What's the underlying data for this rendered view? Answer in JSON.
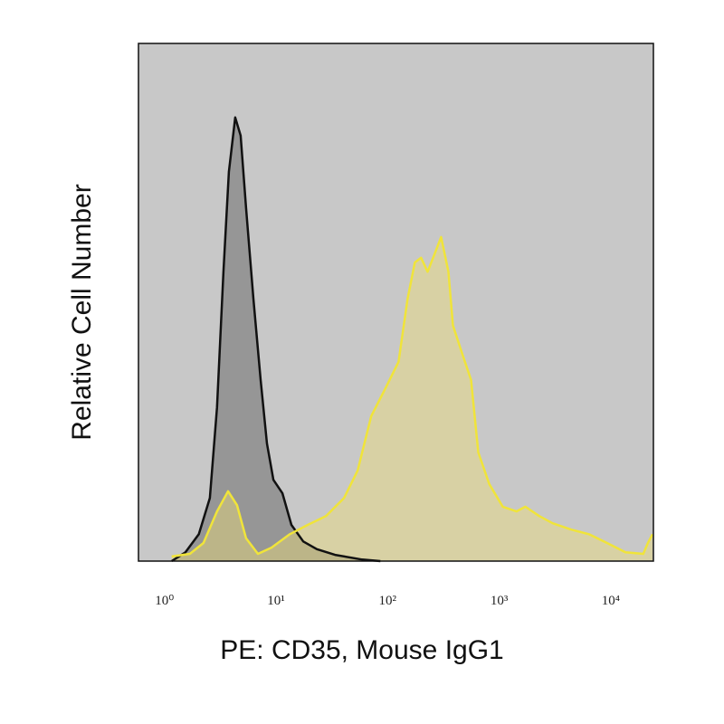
{
  "chart_data": {
    "type": "area",
    "x_label": "PE: CD35, Mouse IgG1",
    "y_label": "Relative Cell Number",
    "xscale": "log",
    "xlim": [
      0.63,
      26000
    ],
    "ylim": [
      0,
      100
    ],
    "xticks": [
      {
        "value": 1,
        "label": "10⁰"
      },
      {
        "value": 10,
        "label": "10¹"
      },
      {
        "value": 100,
        "label": "10²"
      },
      {
        "value": 1000,
        "label": "10³"
      },
      {
        "value": 10000,
        "label": "10⁴"
      }
    ],
    "background": "#c8c8c8",
    "series": [
      {
        "color": "#111111",
        "fill": "#969696",
        "x": [
          1.25,
          1.66,
          2.19,
          2.75,
          3.19,
          3.64,
          4.07,
          4.64,
          5.19,
          5.81,
          6.75,
          7.84,
          8.94,
          10.2,
          12.3,
          14.8,
          18.9,
          25.0,
          36.4,
          63.8,
          92.8
        ],
        "values": [
          0,
          1.7,
          5.2,
          12.2,
          29.7,
          55.9,
          75.2,
          85.7,
          82.2,
          68.2,
          50.7,
          35.0,
          22.7,
          15.7,
          13.1,
          7.0,
          3.8,
          2.3,
          1.2,
          0.3,
          0
        ]
      },
      {
        "color": "#f0e43a",
        "fill": "rgba(236,220,120,0.45)",
        "x": [
          1.25,
          1.82,
          2.41,
          3.19,
          4.0,
          4.82,
          5.81,
          7.41,
          9.82,
          14.3,
          20.7,
          30.2,
          43.9,
          58.1,
          76.9,
          102,
          135,
          163,
          189,
          215,
          246,
          285,
          325,
          378,
          415,
          500,
          603,
          701,
          878,
          1160,
          1540,
          1850,
          2460,
          3250,
          4730,
          6880,
          10000,
          14600,
          21100,
          23200,
          25500
        ],
        "values": [
          0.9,
          1.4,
          3.5,
          9.6,
          13.5,
          10.8,
          4.4,
          1.4,
          2.6,
          5.2,
          7.0,
          8.7,
          12.2,
          17.5,
          28.0,
          33.2,
          38.5,
          50.7,
          57.7,
          58.6,
          55.9,
          59.4,
          62.6,
          55.9,
          45.5,
          40.2,
          35.0,
          21.0,
          14.9,
          10.5,
          9.6,
          10.5,
          8.7,
          7.3,
          6.1,
          5.2,
          3.5,
          1.7,
          1.4,
          3.5,
          5.2
        ]
      }
    ]
  }
}
